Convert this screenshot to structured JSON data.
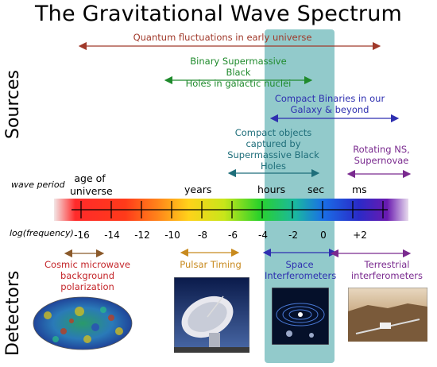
{
  "title": "The Gravitational Wave Spectrum",
  "labels": {
    "sources": "Sources",
    "detectors": "Detectors"
  },
  "sources": {
    "quantum": "Quantum fluctuations in early universe",
    "smbh_line1": "Binary Supermassive Black",
    "smbh_line2": "Holes in galactic nuclei",
    "compact_bin_line1": "Compact Binaries in our",
    "compact_bin_line2": "Galaxy & beyond",
    "emri_line1": "Compact objects",
    "emri_line2": "captured by",
    "emri_line3": "Supermassive Black",
    "emri_line4": "Holes",
    "ns_line1": "Rotating NS,",
    "ns_line2": "Supernovae"
  },
  "period": {
    "axis_label": "wave period",
    "age_line1": "age of",
    "age_line2": "universe",
    "years": "years",
    "hours": "hours",
    "sec": "sec",
    "ms": "ms"
  },
  "frequency": {
    "axis_label": "log(frequency)",
    "ticks": [
      "-16",
      "-14",
      "-12",
      "-10",
      "-8",
      "-6",
      "-4",
      "-2",
      "0",
      "+2"
    ]
  },
  "detectors": {
    "cmb_line1": "Cosmic microwave",
    "cmb_line2": "background",
    "cmb_line3": "polarization",
    "pulsar": "Pulsar Timing",
    "space_line1": "Space",
    "space_line2": "Interferometers",
    "terr_line1": "Terrestrial",
    "terr_line2": "interferometers"
  },
  "colors": {
    "quantum": "#a0392a",
    "smbh": "#1f8a2c",
    "compact": "#2e2fb0",
    "emri": "#1e6e7a",
    "ns": "#7a2a8f",
    "cmb": "#c4262a",
    "pulsar": "#c88a1e",
    "space": "#2e2fb0",
    "terrestrial": "#7a2a8f",
    "band": "#7fc1c2"
  }
}
